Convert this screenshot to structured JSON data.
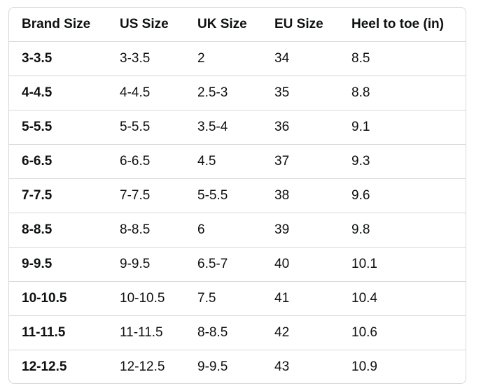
{
  "table": {
    "header": [
      "Brand Size",
      "US Size",
      "UK Size",
      "EU Size",
      "Heel to toe (in)"
    ],
    "rows": [
      [
        "3-3.5",
        "3-3.5",
        "2",
        "34",
        "8.5"
      ],
      [
        "4-4.5",
        "4-4.5",
        "2.5-3",
        "35",
        "8.8"
      ],
      [
        "5-5.5",
        "5-5.5",
        "3.5-4",
        "36",
        "9.1"
      ],
      [
        "6-6.5",
        "6-6.5",
        "4.5",
        "37",
        "9.3"
      ],
      [
        "7-7.5",
        "7-7.5",
        "5-5.5",
        "38",
        "9.6"
      ],
      [
        "8-8.5",
        "8-8.5",
        "6",
        "39",
        "9.8"
      ],
      [
        "9-9.5",
        "9-9.5",
        "6.5-7",
        "40",
        "10.1"
      ],
      [
        "10-10.5",
        "10-10.5",
        "7.5",
        "41",
        "10.4"
      ],
      [
        "11-11.5",
        "11-11.5",
        "8-8.5",
        "42",
        "10.6"
      ],
      [
        "12-12.5",
        "12-12.5",
        "9-9.5",
        "43",
        "10.9"
      ]
    ]
  }
}
